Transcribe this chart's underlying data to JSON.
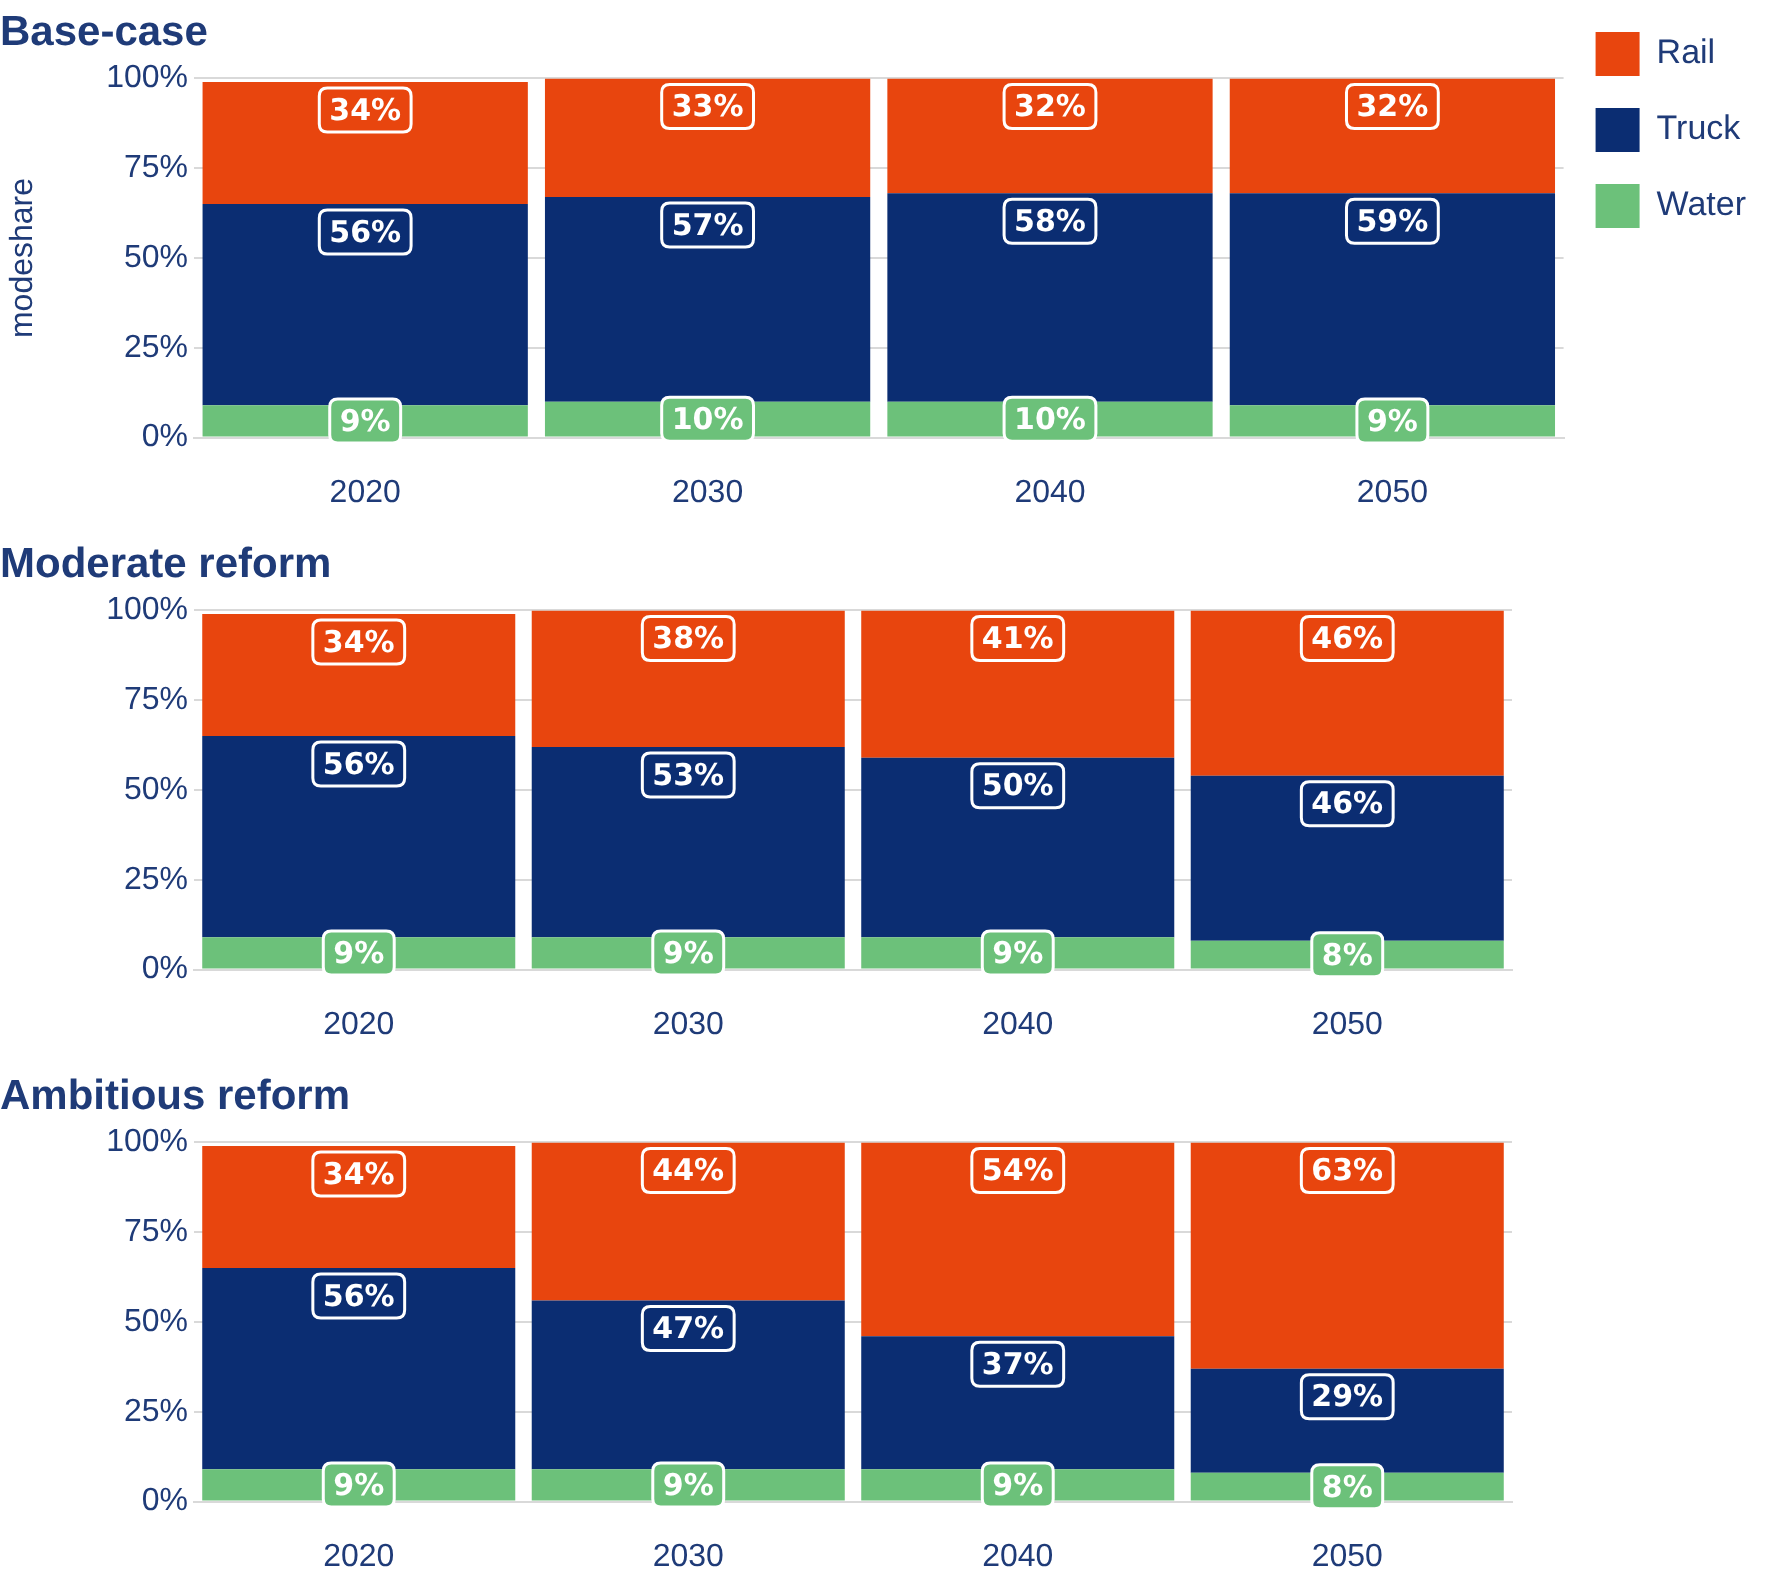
{
  "chart_data": [
    {
      "type": "bar",
      "title": "Base-case",
      "ylabel": "modeshare",
      "stacked": true,
      "grid": "y",
      "legend": "right",
      "categories": [
        "2020",
        "2030",
        "2040",
        "2050"
      ],
      "ylim": [
        0,
        100
      ],
      "yticks": [
        {
          "value": 0,
          "label": "0%"
        },
        {
          "value": 25,
          "label": "25%"
        },
        {
          "value": 50,
          "label": "50%"
        },
        {
          "value": 75,
          "label": "75%"
        },
        {
          "value": 100,
          "label": "100%"
        }
      ],
      "series": [
        {
          "name": "Water",
          "color": "#6cc17a",
          "values": [
            9,
            10,
            10,
            9
          ],
          "value_labels": [
            "9%",
            "10%",
            "10%",
            "9%"
          ]
        },
        {
          "name": "Truck",
          "color": "#0b2d72",
          "values": [
            56,
            57,
            58,
            59
          ],
          "value_labels": [
            "56%",
            "57%",
            "58%",
            "59%"
          ]
        },
        {
          "name": "Rail",
          "color": "#e8450e",
          "values": [
            34,
            33,
            32,
            32
          ],
          "value_labels": [
            "34%",
            "33%",
            "32%",
            "32%"
          ]
        }
      ]
    },
    {
      "type": "bar",
      "title": "Moderate reform",
      "stacked": true,
      "grid": "y",
      "categories": [
        "2020",
        "2030",
        "2040",
        "2050"
      ],
      "ylim": [
        0,
        100
      ],
      "yticks": [
        {
          "value": 0,
          "label": "0%"
        },
        {
          "value": 25,
          "label": "25%"
        },
        {
          "value": 50,
          "label": "50%"
        },
        {
          "value": 75,
          "label": "75%"
        },
        {
          "value": 100,
          "label": "100%"
        }
      ],
      "series": [
        {
          "color": "#6cc17a",
          "values": [
            9,
            9,
            9,
            8
          ],
          "value_labels": [
            "9%",
            "9%",
            "9%",
            "8%"
          ]
        },
        {
          "color": "#0b2d72",
          "values": [
            56,
            53,
            50,
            46
          ],
          "value_labels": [
            "56%",
            "53%",
            "50%",
            "46%"
          ]
        },
        {
          "color": "#e8450e",
          "values": [
            34,
            38,
            41,
            46
          ],
          "value_labels": [
            "34%",
            "38%",
            "41%",
            "46%"
          ]
        }
      ]
    },
    {
      "type": "bar",
      "title": "Ambitious reform",
      "stacked": true,
      "grid": "y",
      "categories": [
        "2020",
        "2030",
        "2040",
        "2050"
      ],
      "ylim": [
        0,
        100
      ],
      "yticks": [
        {
          "value": 0,
          "label": "0%"
        },
        {
          "value": 25,
          "label": "25%"
        },
        {
          "value": 50,
          "label": "50%"
        },
        {
          "value": 75,
          "label": "75%"
        },
        {
          "value": 100,
          "label": "100%"
        }
      ],
      "series": [
        {
          "color": "#6cc17a",
          "values": [
            9,
            9,
            9,
            8
          ],
          "value_labels": [
            "9%",
            "9%",
            "9%",
            "8%"
          ]
        },
        {
          "color": "#0b2d72",
          "values": [
            56,
            47,
            37,
            29
          ],
          "value_labels": [
            "56%",
            "47%",
            "37%",
            "29%"
          ]
        },
        {
          "color": "#e8450e",
          "values": [
            34,
            44,
            54,
            63
          ],
          "value_labels": [
            "34%",
            "44%",
            "54%",
            "63%"
          ]
        }
      ]
    }
  ]
}
